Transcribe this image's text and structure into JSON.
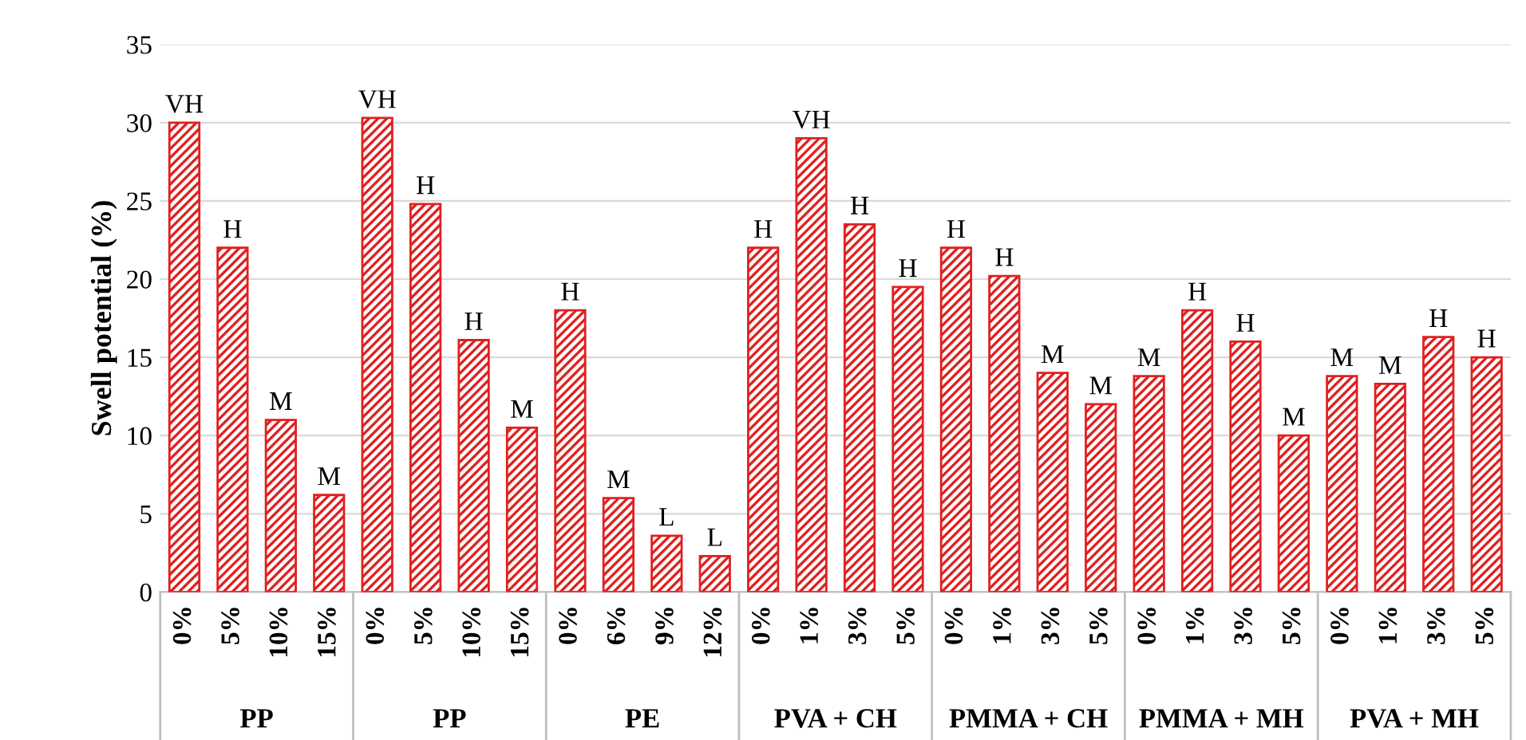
{
  "chart_data": {
    "type": "bar",
    "ylabel": "Swell potential (%)",
    "categories": [
      "0%",
      "5%",
      "10%",
      "15%",
      "0%",
      "5%",
      "10%",
      "15%",
      "0%",
      "6%",
      "9%",
      "12%",
      "0%",
      "1%",
      "3%",
      "5%",
      "0%",
      "1%",
      "3%",
      "5%",
      "0%",
      "1%",
      "3%",
      "5%",
      "0%",
      "1%",
      "3%",
      "5%"
    ],
    "values": [
      30,
      22,
      11,
      6.2,
      30.3,
      24.8,
      16.1,
      10.5,
      18,
      6,
      3.6,
      2.3,
      22,
      29,
      23.5,
      19.5,
      22,
      20.2,
      14,
      12,
      13.8,
      18,
      16,
      10,
      13.8,
      13.3,
      16.3,
      15
    ],
    "value_labels": [
      "VH",
      "H",
      "M",
      "M",
      "VH",
      "H",
      "H",
      "M",
      "H",
      "M",
      "L",
      "L",
      "H",
      "VH",
      "H",
      "H",
      "H",
      "H",
      "M",
      "M",
      "M",
      "H",
      "H",
      "M",
      "M",
      "M",
      "H",
      "H"
    ],
    "color": "#e02020",
    "annotations": [
      "PP",
      "PP",
      "PE",
      "PVA + CH",
      "PMMA + CH",
      "PMMA + MH",
      "PVA + MH"
    ],
    "ylim": [
      0,
      35
    ],
    "yticks": [
      0,
      5,
      10,
      15,
      20,
      25,
      30,
      35
    ],
    "grid": "y"
  }
}
